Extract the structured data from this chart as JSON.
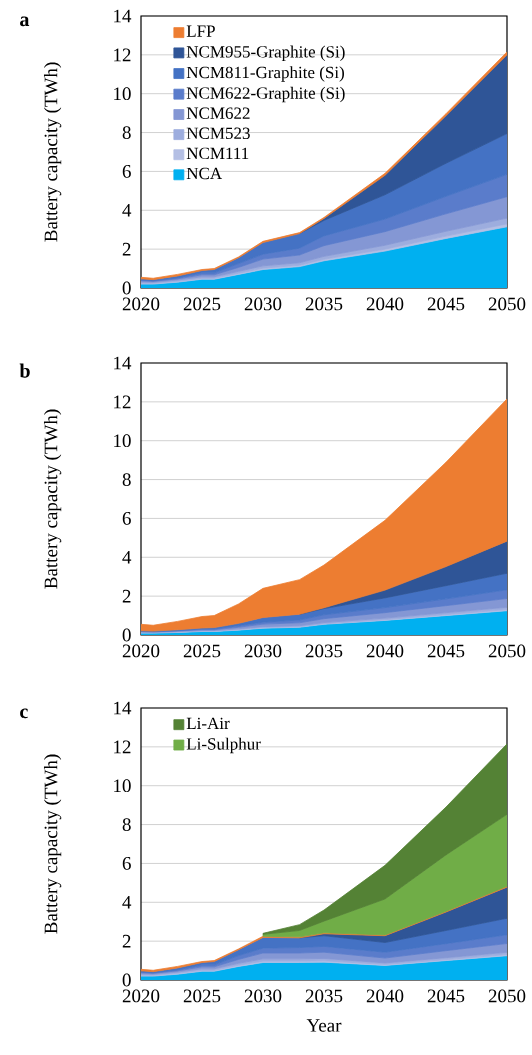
{
  "chart_data": [
    {
      "type": "area",
      "title": "a",
      "ylabel": "Battery capacity (TWh)",
      "stacked": true,
      "grid": "y",
      "legend": "top left",
      "xlim": [
        2020,
        2050
      ],
      "xticks": [
        2020,
        2025,
        2030,
        2035,
        2040,
        2045,
        2050
      ],
      "ylim": [
        0,
        14
      ],
      "yticks": [
        0,
        2,
        4,
        6,
        8,
        10,
        12,
        14
      ],
      "x": [
        2020,
        2021,
        2023,
        2025,
        2026,
        2028,
        2030,
        2033,
        2035,
        2040,
        2045,
        2050
      ],
      "series": [
        {
          "name": "NCA",
          "color": "#00b0f0",
          "values": [
            0.2,
            0.2,
            0.3,
            0.45,
            0.45,
            0.7,
            0.95,
            1.1,
            1.4,
            1.9,
            2.55,
            3.15
          ]
        },
        {
          "name": "NCM111",
          "color": "#b4bfe4",
          "values": [
            0.05,
            0.04,
            0.05,
            0.05,
            0.05,
            0.06,
            0.07,
            0.07,
            0.08,
            0.1,
            0.12,
            0.15
          ]
        },
        {
          "name": "NCM523",
          "color": "#9dadde",
          "values": [
            0.06,
            0.05,
            0.06,
            0.08,
            0.08,
            0.1,
            0.12,
            0.13,
            0.15,
            0.2,
            0.25,
            0.3
          ]
        },
        {
          "name": "NCM622",
          "color": "#8497d4",
          "values": [
            0.06,
            0.05,
            0.06,
            0.1,
            0.1,
            0.2,
            0.35,
            0.4,
            0.55,
            0.7,
            0.9,
            1.1
          ]
        },
        {
          "name": "NCM622-Graphite (Si)",
          "color": "#5a7ccb",
          "values": [
            0.04,
            0.04,
            0.05,
            0.1,
            0.1,
            0.2,
            0.25,
            0.35,
            0.5,
            0.65,
            0.9,
            1.15
          ]
        },
        {
          "name": "NCM811-Graphite (Si)",
          "color": "#4472c4",
          "values": [
            0.06,
            0.05,
            0.1,
            0.12,
            0.17,
            0.3,
            0.6,
            0.75,
            0.8,
            1.25,
            1.7,
            2.1
          ]
        },
        {
          "name": "NCM955-Graphite (Si)",
          "color": "#2f5597",
          "values": [
            null,
            null,
            null,
            null,
            null,
            null,
            null,
            0,
            0.1,
            1.0,
            2.45,
            4.05
          ]
        },
        {
          "name": "LFP",
          "color": "#ed7d31",
          "values": [
            0.08,
            0.07,
            0.08,
            0.05,
            0.05,
            0.04,
            0.06,
            0.05,
            0.05,
            0.1,
            0.1,
            0.15
          ]
        }
      ]
    },
    {
      "type": "area",
      "title": "b",
      "ylabel": "Battery capacity (TWh)",
      "stacked": true,
      "grid": "y",
      "xlim": [
        2020,
        2050
      ],
      "xticks": [
        2020,
        2025,
        2030,
        2035,
        2040,
        2045,
        2050
      ],
      "ylim": [
        0,
        14
      ],
      "yticks": [
        0,
        2,
        4,
        6,
        8,
        10,
        12,
        14
      ],
      "x": [
        2020,
        2021,
        2023,
        2025,
        2026,
        2028,
        2030,
        2033,
        2035,
        2040,
        2045,
        2050
      ],
      "series": [
        {
          "color": "#00b0f0",
          "values": [
            0.1,
            0.1,
            0.13,
            0.18,
            0.18,
            0.25,
            0.35,
            0.4,
            0.55,
            0.75,
            1.0,
            1.25
          ]
        },
        {
          "color": "#b4bfe4",
          "values": [
            0.02,
            0.02,
            0.02,
            0.02,
            0.02,
            0.03,
            0.03,
            0.03,
            0.03,
            0.04,
            0.05,
            0.06
          ]
        },
        {
          "color": "#9dadde",
          "values": [
            0.03,
            0.02,
            0.03,
            0.03,
            0.03,
            0.04,
            0.05,
            0.05,
            0.06,
            0.08,
            0.1,
            0.12
          ]
        },
        {
          "color": "#8497d4",
          "values": [
            0.03,
            0.02,
            0.03,
            0.04,
            0.04,
            0.08,
            0.13,
            0.15,
            0.2,
            0.28,
            0.36,
            0.45
          ]
        },
        {
          "color": "#5a7ccb",
          "values": [
            0.02,
            0.02,
            0.02,
            0.04,
            0.04,
            0.08,
            0.1,
            0.14,
            0.2,
            0.26,
            0.35,
            0.45
          ]
        },
        {
          "color": "#4472c4",
          "values": [
            0.02,
            0.02,
            0.04,
            0.05,
            0.07,
            0.12,
            0.24,
            0.3,
            0.32,
            0.5,
            0.68,
            0.85
          ]
        },
        {
          "color": "#2f5597",
          "values": [
            null,
            null,
            null,
            null,
            null,
            null,
            null,
            0,
            0.04,
            0.4,
            0.98,
            1.65
          ]
        },
        {
          "color": "#ed7d31",
          "values": [
            0.33,
            0.3,
            0.43,
            0.59,
            0.62,
            1.0,
            1.5,
            1.78,
            2.2,
            3.59,
            5.37,
            7.32
          ]
        }
      ]
    },
    {
      "type": "area",
      "title": "c",
      "ylabel": "Battery capacity (TWh)",
      "xlabel": "Year",
      "stacked": true,
      "grid": "y",
      "legend": "top left",
      "xlim": [
        2020,
        2050
      ],
      "xticks": [
        2020,
        2025,
        2030,
        2035,
        2040,
        2045,
        2050
      ],
      "ylim": [
        0,
        14
      ],
      "yticks": [
        0,
        2,
        4,
        6,
        8,
        10,
        12,
        14
      ],
      "x": [
        2020,
        2021,
        2023,
        2025,
        2026,
        2028,
        2030,
        2033,
        2035,
        2040,
        2045,
        2050
      ],
      "series": [
        {
          "color": "#00b0f0",
          "values": [
            0.2,
            0.2,
            0.3,
            0.45,
            0.45,
            0.7,
            0.9,
            0.9,
            0.92,
            0.75,
            1.0,
            1.25
          ]
        },
        {
          "color": "#b4bfe4",
          "values": [
            0.05,
            0.04,
            0.05,
            0.05,
            0.05,
            0.06,
            0.07,
            0.07,
            0.07,
            0.05,
            0.05,
            0.06
          ]
        },
        {
          "color": "#9dadde",
          "values": [
            0.06,
            0.05,
            0.06,
            0.08,
            0.08,
            0.1,
            0.12,
            0.12,
            0.12,
            0.08,
            0.1,
            0.12
          ]
        },
        {
          "color": "#8497d4",
          "values": [
            0.06,
            0.05,
            0.06,
            0.1,
            0.1,
            0.2,
            0.3,
            0.3,
            0.32,
            0.25,
            0.36,
            0.45
          ]
        },
        {
          "color": "#5a7ccb",
          "values": [
            0.04,
            0.04,
            0.05,
            0.1,
            0.1,
            0.2,
            0.25,
            0.28,
            0.3,
            0.3,
            0.36,
            0.45
          ]
        },
        {
          "color": "#4472c4",
          "values": [
            0.06,
            0.05,
            0.1,
            0.12,
            0.17,
            0.3,
            0.55,
            0.5,
            0.55,
            0.5,
            0.68,
            0.85
          ]
        },
        {
          "color": "#2f5597",
          "values": [
            null,
            null,
            null,
            null,
            null,
            null,
            null,
            0,
            0.1,
            0.35,
            0.95,
            1.6
          ]
        },
        {
          "color": "#ed7d31",
          "values": [
            0.08,
            0.07,
            0.08,
            0.05,
            0.05,
            0.04,
            0.06,
            0.05,
            0.05,
            0.04,
            0.04,
            0.05
          ]
        },
        {
          "name": "Li-Sulphur",
          "color": "#70ad47",
          "values": [
            null,
            null,
            null,
            null,
            null,
            null,
            0.1,
            0.33,
            0.6,
            1.85,
            2.9,
            3.7
          ]
        },
        {
          "name": "Li-Air",
          "color": "#548235",
          "values": [
            null,
            null,
            null,
            null,
            null,
            null,
            0.05,
            0.3,
            0.57,
            1.73,
            2.46,
            3.62
          ]
        }
      ]
    }
  ]
}
